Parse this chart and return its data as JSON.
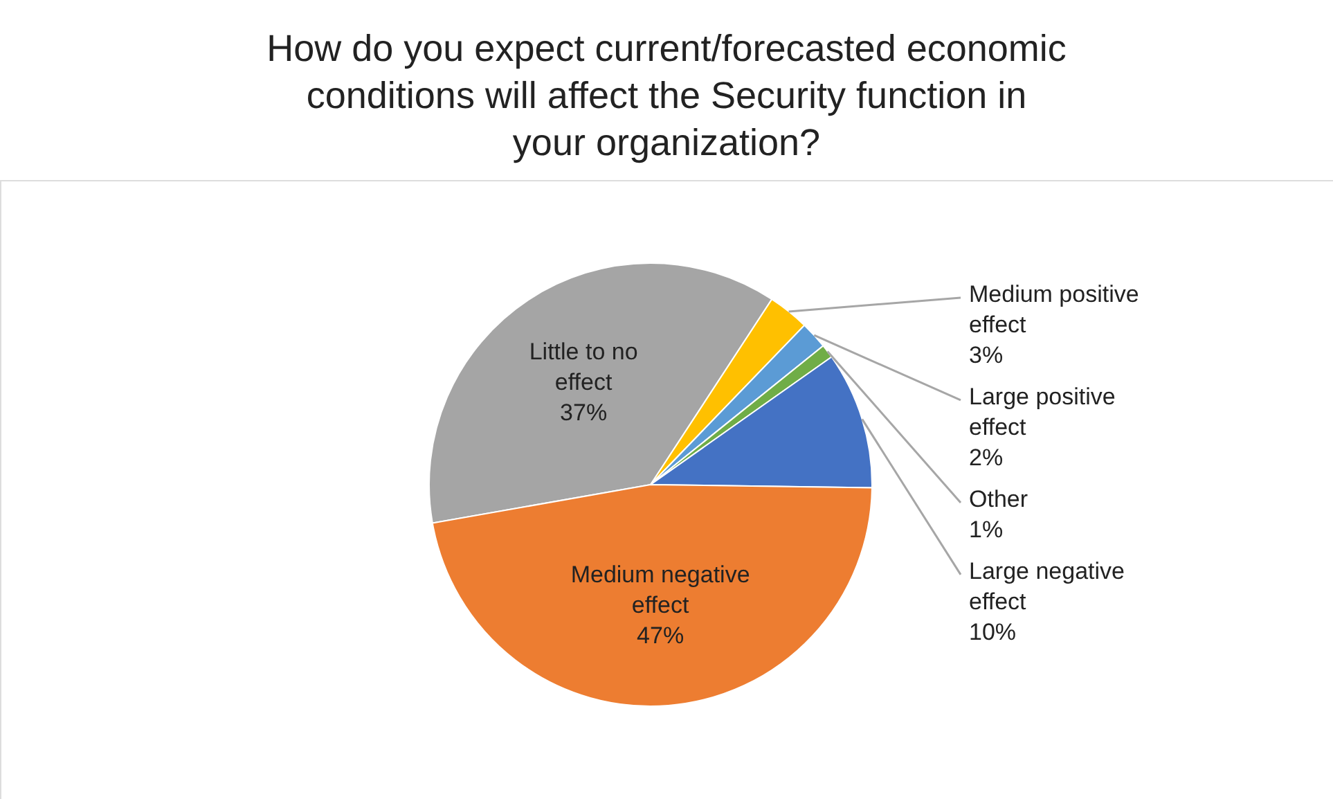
{
  "chart_data": {
    "type": "pie",
    "title": "How do you expect current/forecasted economic conditions will affect the Security function in your organization?",
    "categories": [
      "Little to no effect",
      "Medium positive effect",
      "Large positive effect",
      "Other",
      "Large negative effect",
      "Medium negative effect"
    ],
    "values": [
      37,
      3,
      2,
      1,
      10,
      47
    ],
    "value_labels": [
      "37%",
      "3%",
      "2%",
      "1%",
      "10%",
      "47%"
    ],
    "colors": [
      "#a5a5a5",
      "#ffc000",
      "#5b9bd5",
      "#70ad47",
      "#4472c4",
      "#ed7d31"
    ],
    "legend": false
  }
}
